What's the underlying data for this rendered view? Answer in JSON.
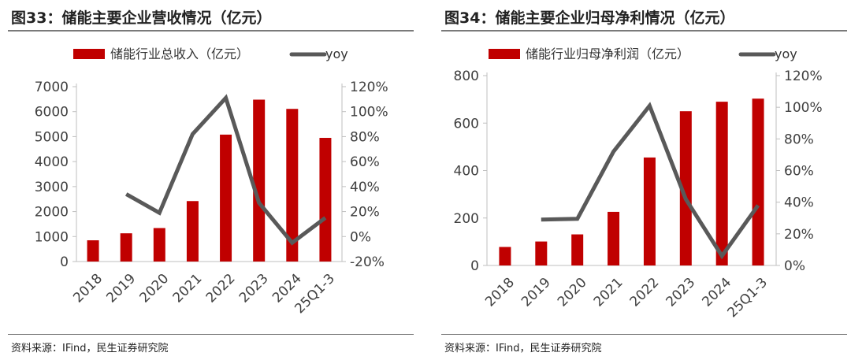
{
  "colors": {
    "bar": "#c00000",
    "line": "#595959"
  },
  "charts": [
    {
      "title": "图33：储能主要企业营收情况（亿元）",
      "source": "资料来源：IFind，民生证券研究院",
      "legend": {
        "bar": "储能行业总收入（亿元）",
        "line": "yoy"
      }
    },
    {
      "title": "图34：储能主要企业归母净利情况（亿元）",
      "source": "资料来源：IFind，民生证券研究院",
      "legend": {
        "bar": "储能行业归母净利润（亿元）",
        "line": "yoy"
      }
    }
  ],
  "chart_data": [
    {
      "type": "bar",
      "title": "图33：储能主要企业营收情况（亿元）",
      "categories": [
        "2018",
        "2019",
        "2020",
        "2021",
        "2022",
        "2023",
        "2024",
        "25Q1-3"
      ],
      "series": [
        {
          "name": "储能行业总收入（亿元）",
          "type": "bar",
          "axis": "left",
          "values": [
            850,
            1130,
            1340,
            2420,
            5080,
            6480,
            6110,
            4950
          ]
        },
        {
          "name": "yoy",
          "type": "line",
          "axis": "right",
          "values": [
            null,
            34,
            19,
            82,
            111,
            27,
            -5,
            15
          ]
        }
      ],
      "y_left": {
        "min": 0,
        "max": 7000,
        "ticks": [
          0,
          1000,
          2000,
          3000,
          4000,
          5000,
          6000,
          7000
        ],
        "labels": [
          "0",
          "1000",
          "2000",
          "3000",
          "4000",
          "5000",
          "6000",
          "7000"
        ]
      },
      "y_right": {
        "min": -20,
        "max": 120,
        "ticks": [
          -20,
          0,
          20,
          40,
          60,
          80,
          100,
          120
        ],
        "labels": [
          "-20%",
          "0%",
          "20%",
          "40%",
          "60%",
          "80%",
          "100%",
          "120%"
        ]
      }
    },
    {
      "type": "bar",
      "title": "图34：储能主要企业归母净利情况（亿元）",
      "categories": [
        "2018",
        "2019",
        "2020",
        "2021",
        "2022",
        "2023",
        "2024",
        "25Q1-3"
      ],
      "series": [
        {
          "name": "储能行业归母净利润（亿元）",
          "type": "bar",
          "axis": "left",
          "values": [
            78,
            101,
            131,
            226,
            455,
            650,
            690,
            703
          ]
        },
        {
          "name": "yoy",
          "type": "line",
          "axis": "right",
          "values": [
            null,
            29,
            29.5,
            72,
            101,
            42,
            6,
            38
          ]
        }
      ],
      "y_left": {
        "min": 0,
        "max": 800,
        "ticks": [
          0,
          200,
          400,
          600,
          800
        ],
        "labels": [
          "0",
          "200",
          "400",
          "600",
          "800"
        ]
      },
      "y_right": {
        "min": 0,
        "max": 120,
        "ticks": [
          0,
          20,
          40,
          60,
          80,
          100,
          120
        ],
        "labels": [
          "0%",
          "20%",
          "40%",
          "60%",
          "80%",
          "100%",
          "120%"
        ]
      }
    }
  ]
}
